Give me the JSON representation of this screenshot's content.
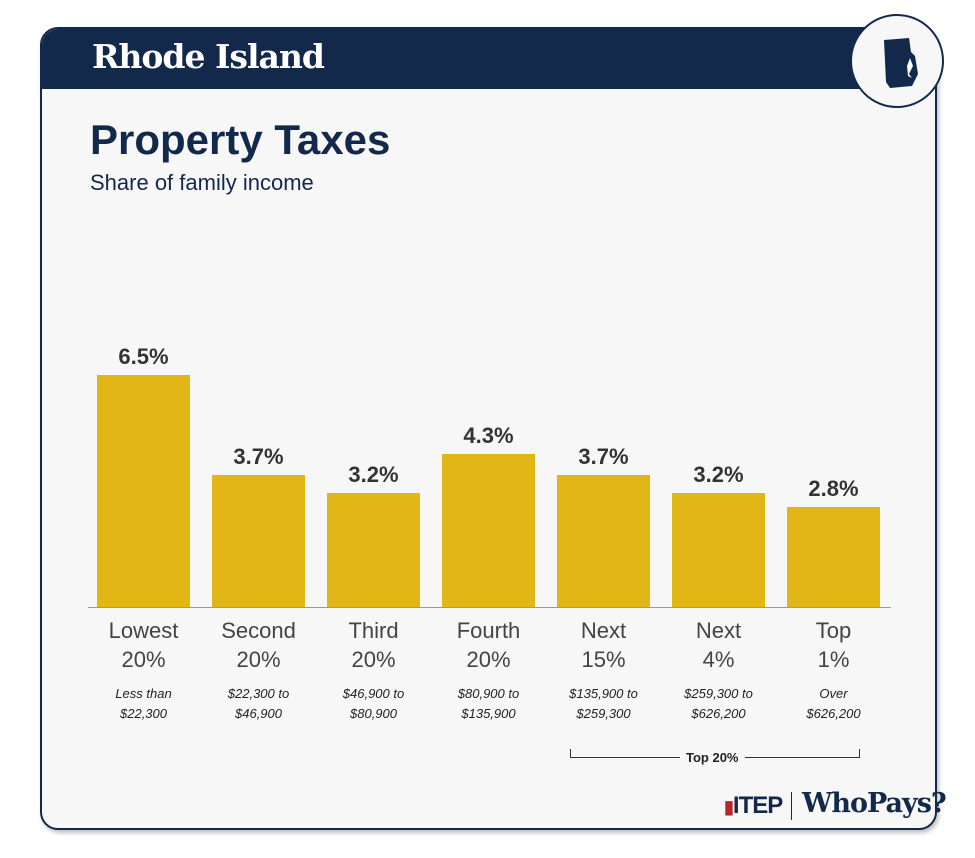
{
  "header": {
    "state": "Rhode Island"
  },
  "chart_data": {
    "type": "bar",
    "title": "Property Taxes",
    "subtitle": "Share of family income",
    "categories": [
      "Lowest 20%",
      "Second 20%",
      "Third 20%",
      "Fourth 20%",
      "Next 15%",
      "Next 4%",
      "Top 1%"
    ],
    "category_lines": [
      [
        "Lowest",
        "20%"
      ],
      [
        "Second",
        "20%"
      ],
      [
        "Third",
        "20%"
      ],
      [
        "Fourth",
        "20%"
      ],
      [
        "Next",
        "15%"
      ],
      [
        "Next",
        "4%"
      ],
      [
        "Top",
        "1%"
      ]
    ],
    "income_ranges": [
      [
        "Less than",
        "$22,300"
      ],
      [
        "$22,300 to",
        "$46,900"
      ],
      [
        "$46,900 to",
        "$80,900"
      ],
      [
        "$80,900 to",
        "$135,900"
      ],
      [
        "$135,900 to",
        "$259,300"
      ],
      [
        "$259,300 to",
        "$626,200"
      ],
      [
        "Over",
        "$626,200"
      ]
    ],
    "values": [
      6.5,
      3.7,
      3.2,
      4.3,
      3.7,
      3.2,
      2.8
    ],
    "labels": [
      "6.5%",
      "3.7%",
      "3.2%",
      "4.3%",
      "3.7%",
      "3.2%",
      "2.8%"
    ],
    "ylim": [
      0,
      6.5
    ],
    "bar_color": "#e2b616",
    "bracket_label": "Top 20%"
  },
  "footer": {
    "itep": "ITEP",
    "whopays": "WhoPays?"
  }
}
